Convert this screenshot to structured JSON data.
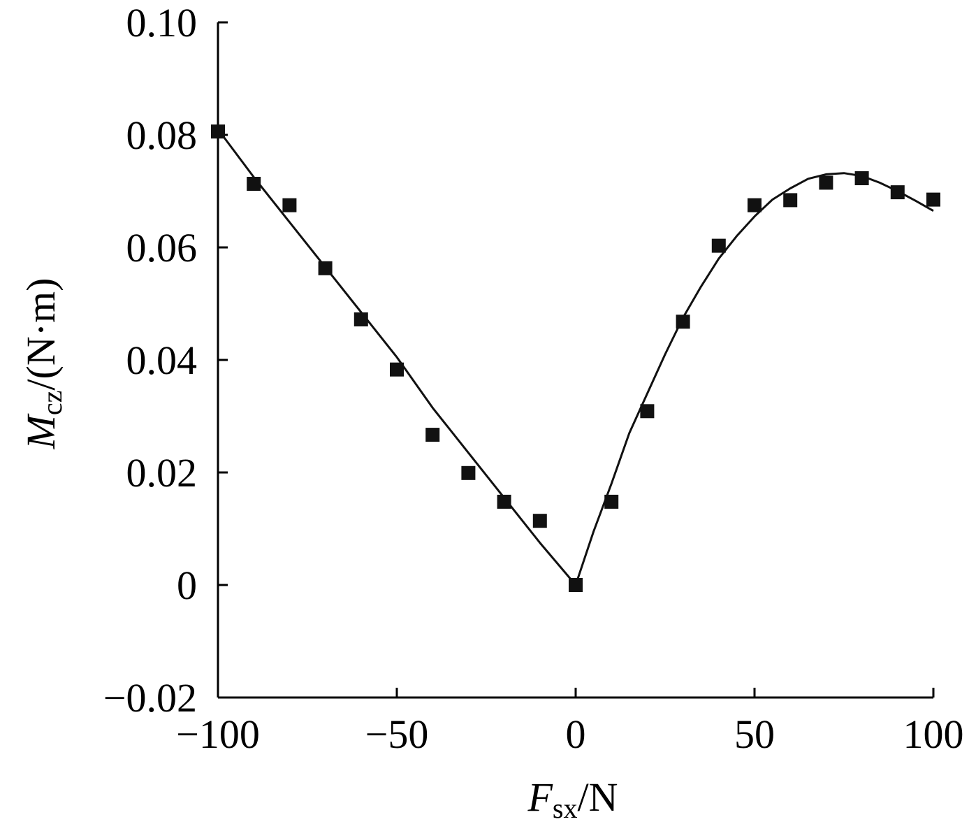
{
  "chart_data": {
    "type": "scatter",
    "title": "",
    "xlabel": {
      "symbol": "F",
      "subscript": "sx",
      "unit": "/N"
    },
    "ylabel": {
      "symbol": "M",
      "subscript": "cz",
      "unit": "/(N·m)"
    },
    "xlim": [
      -100,
      100
    ],
    "ylim": [
      -0.02,
      0.1
    ],
    "x_ticks": [
      -100,
      -50,
      0,
      50,
      100
    ],
    "x_tick_labels": [
      "−100",
      "−50",
      "0",
      "50",
      "100"
    ],
    "y_ticks": [
      -0.02,
      0,
      0.02,
      0.04,
      0.06,
      0.08,
      0.1
    ],
    "y_tick_labels": [
      "−0.02",
      "0",
      "0.02",
      "0.04",
      "0.06",
      "0.08",
      "0.10"
    ],
    "grid": false,
    "legend": "none",
    "series": [
      {
        "kind": "markers",
        "marker": "square",
        "color": "#111111",
        "x": [
          -100,
          -90,
          -80,
          -70,
          -60,
          -50,
          -40,
          -30,
          -20,
          -10,
          0,
          10,
          20,
          30,
          40,
          50,
          60,
          70,
          80,
          90,
          100
        ],
        "y": [
          0.0806,
          0.0713,
          0.0675,
          0.0563,
          0.0472,
          0.0383,
          0.0267,
          0.0199,
          0.0148,
          0.0114,
          0.0,
          0.0148,
          0.0309,
          0.0468,
          0.0603,
          0.0675,
          0.0684,
          0.0715,
          0.0723,
          0.0698,
          0.0685
        ]
      },
      {
        "kind": "line",
        "color": "#111111",
        "x": [
          -100,
          -90,
          -80,
          -70,
          -60,
          -50,
          -40,
          -30,
          -20,
          -10,
          0,
          5,
          10,
          15,
          20,
          25,
          30,
          35,
          40,
          45,
          50,
          55,
          60,
          65,
          70,
          75,
          80,
          85,
          90,
          95,
          100
        ],
        "y": [
          0.081,
          0.0725,
          0.0645,
          0.0565,
          0.0485,
          0.0405,
          0.0315,
          0.0235,
          0.0155,
          0.0075,
          0.0,
          0.0095,
          0.018,
          0.027,
          0.034,
          0.041,
          0.0475,
          0.053,
          0.058,
          0.062,
          0.0655,
          0.0685,
          0.0705,
          0.0722,
          0.073,
          0.0732,
          0.0727,
          0.0715,
          0.07,
          0.0683,
          0.0665
        ]
      }
    ]
  }
}
